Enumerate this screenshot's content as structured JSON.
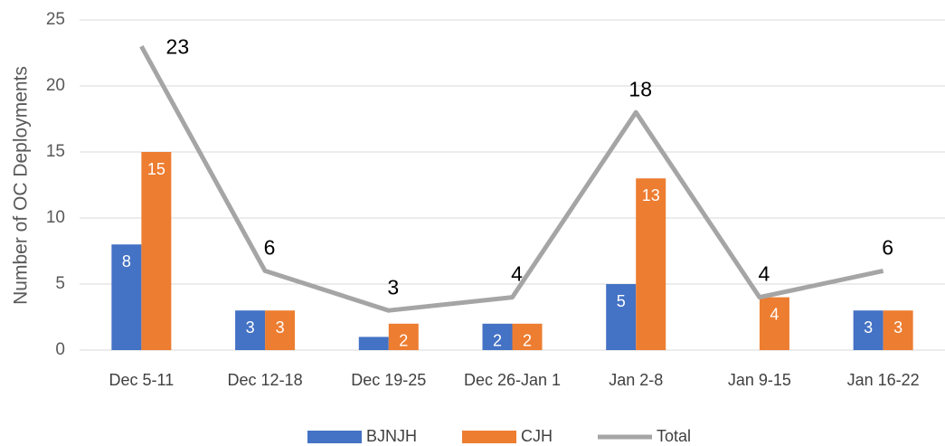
{
  "chart_data": {
    "type": "bar",
    "y_label": "Number of OC Deployments",
    "categories": [
      "Dec 5-11",
      "Dec 12-18",
      "Dec 19-25",
      "Dec 26-Jan 1",
      "Jan 2-8",
      "Jan 9-15",
      "Jan 16-22"
    ],
    "series": [
      {
        "name": "BJNJH",
        "color": "#4472c4",
        "values": [
          8,
          3,
          1,
          2,
          5,
          null,
          3
        ],
        "value_labels": [
          "8",
          "3",
          null,
          "2",
          "5",
          null,
          "3"
        ]
      },
      {
        "name": "CJH",
        "color": "#ed7d31",
        "values": [
          15,
          3,
          2,
          2,
          13,
          4,
          3
        ]
      },
      {
        "name": "Total",
        "type": "line",
        "color": "#a5a5a5",
        "values": [
          23,
          6,
          3,
          4,
          18,
          4,
          6
        ]
      }
    ],
    "ylim": [
      0,
      25
    ],
    "yticks": [
      0,
      5,
      10,
      15,
      20,
      25
    ],
    "grid": true,
    "legend": "bottom"
  }
}
